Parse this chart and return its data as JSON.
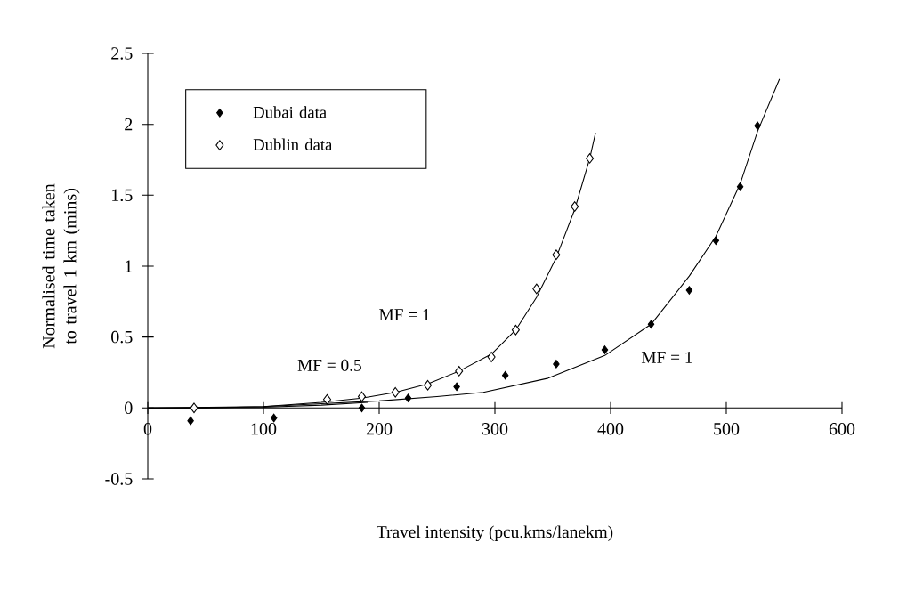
{
  "chart_data": {
    "type": "scatter",
    "xlabel": "Travel intensity (pcu.kms/lanekm)",
    "ylabel": "Normalised time taken to travel 1 km (mins)",
    "xlim": [
      0,
      600
    ],
    "ylim": [
      -0.5,
      2.5
    ],
    "xticks": [
      0,
      100,
      200,
      300,
      400,
      500,
      600
    ],
    "yticks": [
      -0.5,
      0,
      0.5,
      1,
      1.5,
      2,
      2.5
    ],
    "grid": false,
    "legend": "top left",
    "series": [
      {
        "name": "Dubai data",
        "marker": "diamond",
        "color": "#000000",
        "x": [
          37,
          109,
          185,
          225,
          267,
          309,
          353,
          395,
          435,
          468,
          491,
          512,
          527
        ],
        "values": [
          -0.09,
          -0.07,
          0.0,
          0.07,
          0.15,
          0.23,
          0.31,
          0.41,
          0.59,
          0.83,
          1.18,
          1.56,
          1.99
        ]
      },
      {
        "name": "Dublin data",
        "marker": "diamond",
        "color": "#000000",
        "x": [
          40,
          155,
          185,
          214,
          242,
          269,
          297,
          318,
          336,
          353,
          369,
          382
        ],
        "values": [
          0.0,
          0.06,
          0.08,
          0.11,
          0.16,
          0.26,
          0.36,
          0.55,
          0.84,
          1.08,
          1.42,
          1.76
        ]
      },
      {
        "type": "line",
        "color": "#000000",
        "x": [
          0,
          50,
          100,
          150,
          185,
          214,
          242,
          269,
          297,
          318,
          336,
          353,
          369,
          382,
          387
        ],
        "values": [
          0,
          0,
          0.01,
          0.04,
          0.07,
          0.11,
          0.17,
          0.26,
          0.38,
          0.55,
          0.78,
          1.06,
          1.4,
          1.76,
          1.94
        ]
      },
      {
        "type": "line",
        "color": "#000000",
        "x": [
          0,
          100,
          150,
          200,
          250,
          290,
          346,
          395,
          435,
          468,
          491,
          512,
          527,
          546
        ],
        "values": [
          0,
          0.01,
          0.03,
          0.05,
          0.08,
          0.11,
          0.21,
          0.37,
          0.59,
          0.93,
          1.21,
          1.58,
          1.95,
          2.32
        ]
      },
      {
        "type": "line",
        "color": "#000000",
        "x": [
          0,
          100,
          150,
          190
        ],
        "values": [
          0,
          0.005,
          0.02,
          0.04
        ]
      }
    ],
    "annotations": [
      "MF = 0.5",
      "MF = 1",
      "MF = 1"
    ]
  }
}
